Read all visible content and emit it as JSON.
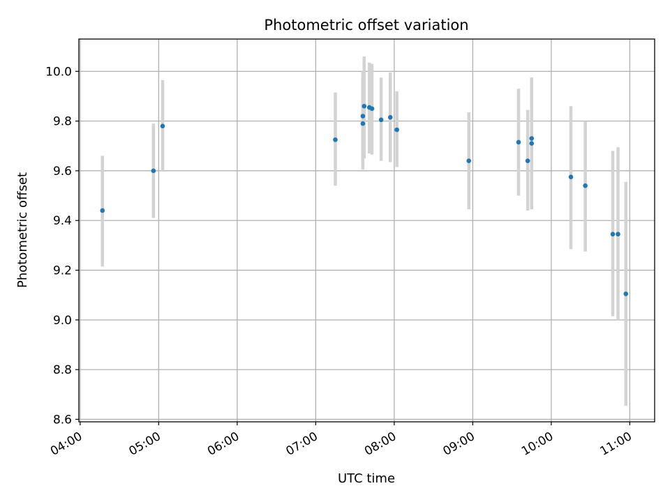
{
  "chart_data": {
    "type": "scatter",
    "title": "Photometric offset variation",
    "xlabel": "UTC time",
    "ylabel": "Photometric offset",
    "x_ticks": [
      "04:00",
      "05:00",
      "06:00",
      "07:00",
      "08:00",
      "09:00",
      "10:00",
      "11:00"
    ],
    "y_ticks": [
      "8.6",
      "8.8",
      "9.0",
      "9.2",
      "9.4",
      "9.6",
      "9.8",
      "10.0"
    ],
    "xlim": [
      "03:59",
      "11:19"
    ],
    "ylim": [
      8.59,
      10.13
    ],
    "grid": true,
    "point_color": "#1f77b4",
    "errorbar_color": "#d3d3d3",
    "points": [
      {
        "x": "04:17",
        "y": 9.44,
        "yerr_low": 9.215,
        "yerr_high": 9.66
      },
      {
        "x": "04:56",
        "y": 9.6,
        "yerr_low": 9.41,
        "yerr_high": 9.79
      },
      {
        "x": "05:03",
        "y": 9.78,
        "yerr_low": 9.6,
        "yerr_high": 9.965
      },
      {
        "x": "07:15",
        "y": 9.725,
        "yerr_low": 9.54,
        "yerr_high": 9.915
      },
      {
        "x": "07:36",
        "y": 9.79,
        "yerr_low": 9.605,
        "yerr_high": 9.975
      },
      {
        "x": "07:36",
        "y": 9.82,
        "yerr_low": 9.62,
        "yerr_high": 10.0
      },
      {
        "x": "07:37",
        "y": 9.86,
        "yerr_low": 9.65,
        "yerr_high": 10.06
      },
      {
        "x": "07:41",
        "y": 9.855,
        "yerr_low": 9.67,
        "yerr_high": 10.035
      },
      {
        "x": "07:43",
        "y": 9.85,
        "yerr_low": 9.665,
        "yerr_high": 10.03
      },
      {
        "x": "07:50",
        "y": 9.805,
        "yerr_low": 9.64,
        "yerr_high": 9.975
      },
      {
        "x": "07:57",
        "y": 9.815,
        "yerr_low": 9.635,
        "yerr_high": 9.995
      },
      {
        "x": "08:02",
        "y": 9.765,
        "yerr_low": 9.615,
        "yerr_high": 9.92
      },
      {
        "x": "08:57",
        "y": 9.64,
        "yerr_low": 9.445,
        "yerr_high": 9.835
      },
      {
        "x": "09:35",
        "y": 9.715,
        "yerr_low": 9.5,
        "yerr_high": 9.93
      },
      {
        "x": "09:42",
        "y": 9.64,
        "yerr_low": 9.44,
        "yerr_high": 9.845
      },
      {
        "x": "09:45",
        "y": 9.73,
        "yerr_low": 9.5,
        "yerr_high": 9.975
      },
      {
        "x": "09:45",
        "y": 9.71,
        "yerr_low": 9.445,
        "yerr_high": 9.975
      },
      {
        "x": "10:15",
        "y": 9.575,
        "yerr_low": 9.285,
        "yerr_high": 9.86
      },
      {
        "x": "10:26",
        "y": 9.54,
        "yerr_low": 9.275,
        "yerr_high": 9.8
      },
      {
        "x": "10:47",
        "y": 9.345,
        "yerr_low": 9.015,
        "yerr_high": 9.68
      },
      {
        "x": "10:51",
        "y": 9.345,
        "yerr_low": 9.0,
        "yerr_high": 9.695
      },
      {
        "x": "10:57",
        "y": 9.105,
        "yerr_low": 8.655,
        "yerr_high": 9.555
      }
    ]
  }
}
